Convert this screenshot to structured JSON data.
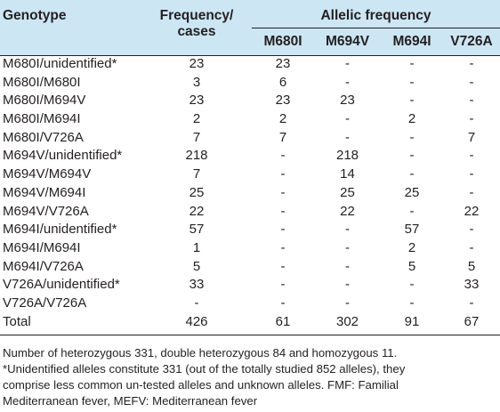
{
  "table": {
    "headers": {
      "genotype": "Genotype",
      "frequency_line1": "Frequency/",
      "frequency_line2": "cases",
      "allelic": "Allelic frequency",
      "alleles": [
        "M680I",
        "M694V",
        "M694I",
        "V726A"
      ]
    },
    "rows": [
      [
        "M680I/unidentified*",
        "23",
        "23",
        "-",
        "-",
        "-"
      ],
      [
        "M680I/M680I",
        "3",
        "6",
        "-",
        "-",
        "-"
      ],
      [
        "M680I/M694V",
        "23",
        "23",
        "23",
        "-",
        "-"
      ],
      [
        "M680I/M694I",
        "2",
        "2",
        "-",
        "2",
        "-"
      ],
      [
        "M680I/V726A",
        "7",
        "7",
        "-",
        "-",
        "7"
      ],
      [
        "M694V/unidentified*",
        "218",
        "-",
        "218",
        "-",
        "-"
      ],
      [
        "M694V/M694V",
        "7",
        "-",
        "14",
        "-",
        "-"
      ],
      [
        "M694V/M694I",
        "25",
        "-",
        "25",
        "25",
        "-"
      ],
      [
        "M694V/V726A",
        "22",
        "-",
        "22",
        "-",
        "22"
      ],
      [
        "M694I/unidentified*",
        "57",
        "-",
        "-",
        "57",
        "-"
      ],
      [
        "M694I/M694I",
        "1",
        "-",
        "-",
        "2",
        "-"
      ],
      [
        "M694I/V726A",
        "5",
        "-",
        "-",
        "5",
        "5"
      ],
      [
        "V726A/unidentified*",
        "33",
        "-",
        "-",
        "-",
        "33"
      ],
      [
        "V726A/V726A",
        "-",
        "-",
        "-",
        "-",
        "-"
      ],
      [
        "Total",
        "426",
        "61",
        "302",
        "91",
        "67"
      ]
    ]
  },
  "footnotes": [
    "Number of heterozygous 331, double heterozygous 84 and homozygous 11.",
    "*Unidentified alleles constitute 331 (out of the totally studied 852 alleles), they",
    "comprise less common un-tested alleles and unknown alleles. FMF: Familial",
    "Mediterranean fever, MEFV: Mediterranean fever"
  ]
}
